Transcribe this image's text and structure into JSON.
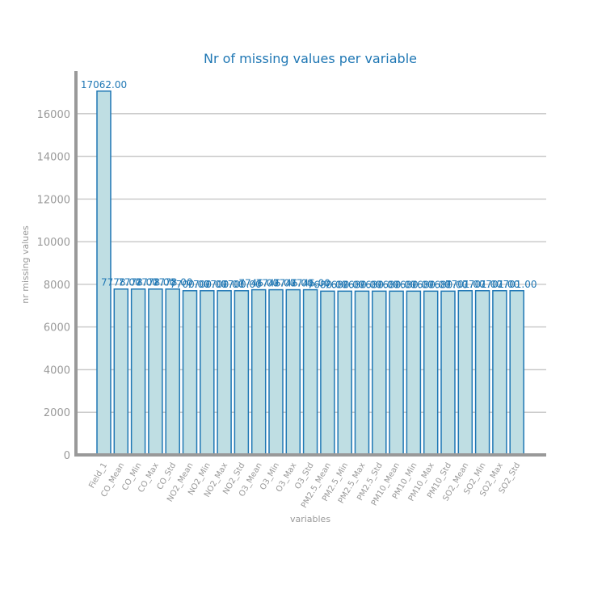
{
  "chart_data": {
    "type": "bar",
    "title": "Nr of missing values per variable",
    "xlabel": "variables",
    "ylabel": "nr missing values",
    "ylim": [
      0,
      18000
    ],
    "yticks": [
      0,
      2000,
      4000,
      6000,
      8000,
      10000,
      12000,
      14000,
      16000
    ],
    "grid": true,
    "categories": [
      "Field_1",
      "CO_Mean",
      "CO_Min",
      "CO_Max",
      "CO_Std",
      "NO2_Mean",
      "NO2_Min",
      "NO2_Max",
      "NO2_Std",
      "O3_Mean",
      "O3_Min",
      "O3_Max",
      "O3_Std",
      "PM2.5_Mean",
      "PM2.5_Min",
      "PM2.5_Max",
      "PM2.5_Std",
      "PM10_Mean",
      "PM10_Min",
      "PM10_Max",
      "PM10_Std",
      "SO2_Mean",
      "SO2_Min",
      "SO2_Max",
      "SO2_Std"
    ],
    "values": [
      17062.0,
      7778.0,
      7778.0,
      7778.0,
      7778.0,
      7700.0,
      7700.0,
      7700.0,
      7700.0,
      7746.0,
      7746.0,
      7746.0,
      7746.0,
      7680.0,
      7680.0,
      7680.0,
      7680.0,
      7680.0,
      7680.0,
      7680.0,
      7680.0,
      7701.0,
      7701.0,
      7701.0,
      7701.0
    ],
    "data_labels": [
      "17062.00",
      "7778.00",
      "7778.00",
      "7778.00",
      "7778.00",
      "7700.00",
      "7700.00",
      "7700.00",
      "7700.00",
      "7746.00",
      "7746.00",
      "7746.00",
      "7746.00",
      "7680.00",
      "7680.00",
      "7680.00",
      "7680.00",
      "7680.00",
      "7680.00",
      "7680.00",
      "7680.00",
      "7701.00",
      "7701.00",
      "7701.00",
      "7701.00"
    ],
    "colors": {
      "bar_fill": "#bfdee3",
      "bar_edge": "#1f77b4",
      "title": "#1f77b4",
      "text": "#999999",
      "grid": "#cccccc"
    }
  }
}
